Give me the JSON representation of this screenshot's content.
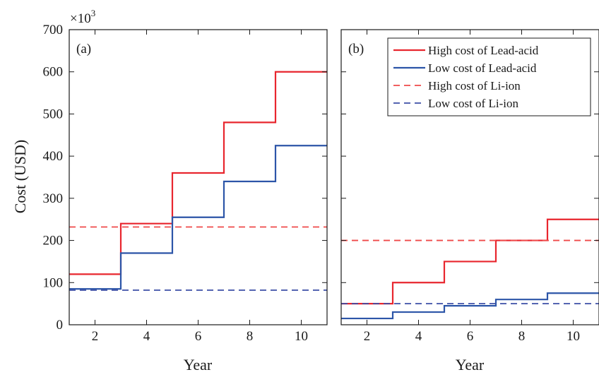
{
  "chart_data": [
    {
      "type": "line",
      "panel_label": "(a)",
      "xlabel": "Year",
      "ylabel": "Cost (USD)",
      "y_multiplier": "×10",
      "y_multiplier_exp": "3",
      "xlim": [
        1,
        11
      ],
      "ylim": [
        0,
        700
      ],
      "xticks": [
        2,
        4,
        6,
        8,
        10
      ],
      "yticks": [
        0,
        100,
        200,
        300,
        400,
        500,
        600,
        700
      ],
      "step": true,
      "series": [
        {
          "style": "solid",
          "color": "#e8262e",
          "x": [
            1,
            3,
            5,
            7,
            9,
            11
          ],
          "y": [
            120,
            240,
            360,
            480,
            600,
            600
          ]
        },
        {
          "style": "solid",
          "color": "#2c55a8",
          "x": [
            1,
            3,
            5,
            7,
            9,
            11
          ],
          "y": [
            85,
            170,
            255,
            340,
            425,
            425
          ]
        },
        {
          "style": "dashed",
          "color": "#ef4a4a",
          "x": [
            1,
            11
          ],
          "y": [
            232,
            232
          ]
        },
        {
          "style": "dashed",
          "color": "#3c4fa6",
          "x": [
            1,
            11
          ],
          "y": [
            82,
            82
          ]
        }
      ]
    },
    {
      "type": "line",
      "panel_label": "(b)",
      "xlabel": "Year",
      "xlim": [
        1,
        11
      ],
      "ylim": [
        0,
        700
      ],
      "xticks": [
        2,
        4,
        6,
        8,
        10
      ],
      "yticks": [
        0,
        100,
        200,
        300,
        400,
        500,
        600,
        700
      ],
      "step": true,
      "legend_position": "top-right",
      "series": [
        {
          "name": "High cost of Lead-acid",
          "style": "solid",
          "color": "#e8262e",
          "x": [
            1,
            3,
            5,
            7,
            9,
            11
          ],
          "y": [
            50,
            100,
            150,
            200,
            250,
            250
          ]
        },
        {
          "name": "Low cost of Lead-acid",
          "style": "solid",
          "color": "#2c55a8",
          "x": [
            1,
            3,
            5,
            7,
            9,
            11
          ],
          "y": [
            15,
            30,
            45,
            60,
            75,
            75
          ]
        },
        {
          "name": "High cost of Li-ion",
          "style": "dashed",
          "color": "#ef4a4a",
          "x": [
            1,
            11
          ],
          "y": [
            200,
            200
          ]
        },
        {
          "name": "Low cost of Li-ion",
          "style": "dashed",
          "color": "#3c4fa6",
          "x": [
            1,
            11
          ],
          "y": [
            50,
            50
          ]
        }
      ]
    }
  ]
}
